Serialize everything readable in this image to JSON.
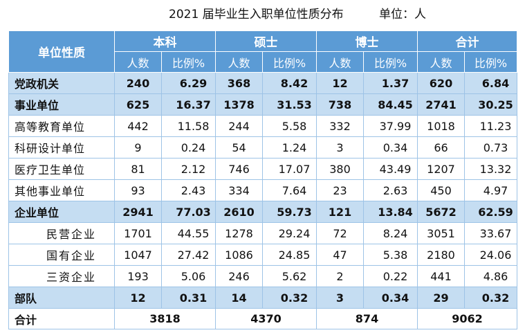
{
  "title": {
    "main": "2021 届毕业生入职单位性质分布",
    "unit": "单位：人"
  },
  "header": {
    "unit_type": "单位性质",
    "groups": [
      "本科",
      "硕士",
      "博士",
      "合计"
    ],
    "count_label": "人数",
    "ratio_label": "比例%"
  },
  "rows": [
    {
      "label": "党政机关",
      "kind": "cat",
      "v": [
        "240",
        "6.29",
        "368",
        "8.42",
        "12",
        "1.37",
        "620",
        "6.84"
      ]
    },
    {
      "label": "事业单位",
      "kind": "cat",
      "v": [
        "625",
        "16.37",
        "1378",
        "31.53",
        "738",
        "84.45",
        "2741",
        "30.25"
      ]
    },
    {
      "label": "高等教育单位",
      "kind": "sub",
      "v": [
        "442",
        "11.58",
        "244",
        "5.58",
        "332",
        "37.99",
        "1018",
        "11.23"
      ]
    },
    {
      "label": "科研设计单位",
      "kind": "sub",
      "v": [
        "9",
        "0.24",
        "54",
        "1.24",
        "3",
        "0.34",
        "66",
        "0.73"
      ]
    },
    {
      "label": "医疗卫生单位",
      "kind": "sub",
      "v": [
        "81",
        "2.12",
        "746",
        "17.07",
        "380",
        "43.49",
        "1207",
        "13.32"
      ]
    },
    {
      "label": "其他事业单位",
      "kind": "sub",
      "v": [
        "93",
        "2.43",
        "334",
        "7.64",
        "23",
        "2.63",
        "450",
        "4.97"
      ]
    },
    {
      "label": "企业单位",
      "kind": "cat",
      "v": [
        "2941",
        "77.03",
        "2610",
        "59.73",
        "121",
        "13.84",
        "5672",
        "62.59"
      ]
    },
    {
      "label": "民营企业",
      "kind": "sub indent",
      "v": [
        "1701",
        "44.55",
        "1278",
        "29.24",
        "72",
        "8.24",
        "3051",
        "33.67"
      ]
    },
    {
      "label": "国有企业",
      "kind": "sub indent",
      "v": [
        "1047",
        "27.42",
        "1086",
        "24.85",
        "47",
        "5.38",
        "2180",
        "24.06"
      ]
    },
    {
      "label": "三资企业",
      "kind": "sub indent",
      "v": [
        "193",
        "5.06",
        "246",
        "5.62",
        "2",
        "0.22",
        "441",
        "4.86"
      ]
    },
    {
      "label": "部队",
      "kind": "cat",
      "v": [
        "12",
        "0.31",
        "14",
        "0.32",
        "3",
        "0.34",
        "29",
        "0.32"
      ]
    }
  ],
  "total": {
    "label": "合计",
    "values": [
      "3818",
      "4370",
      "874",
      "9062"
    ]
  }
}
